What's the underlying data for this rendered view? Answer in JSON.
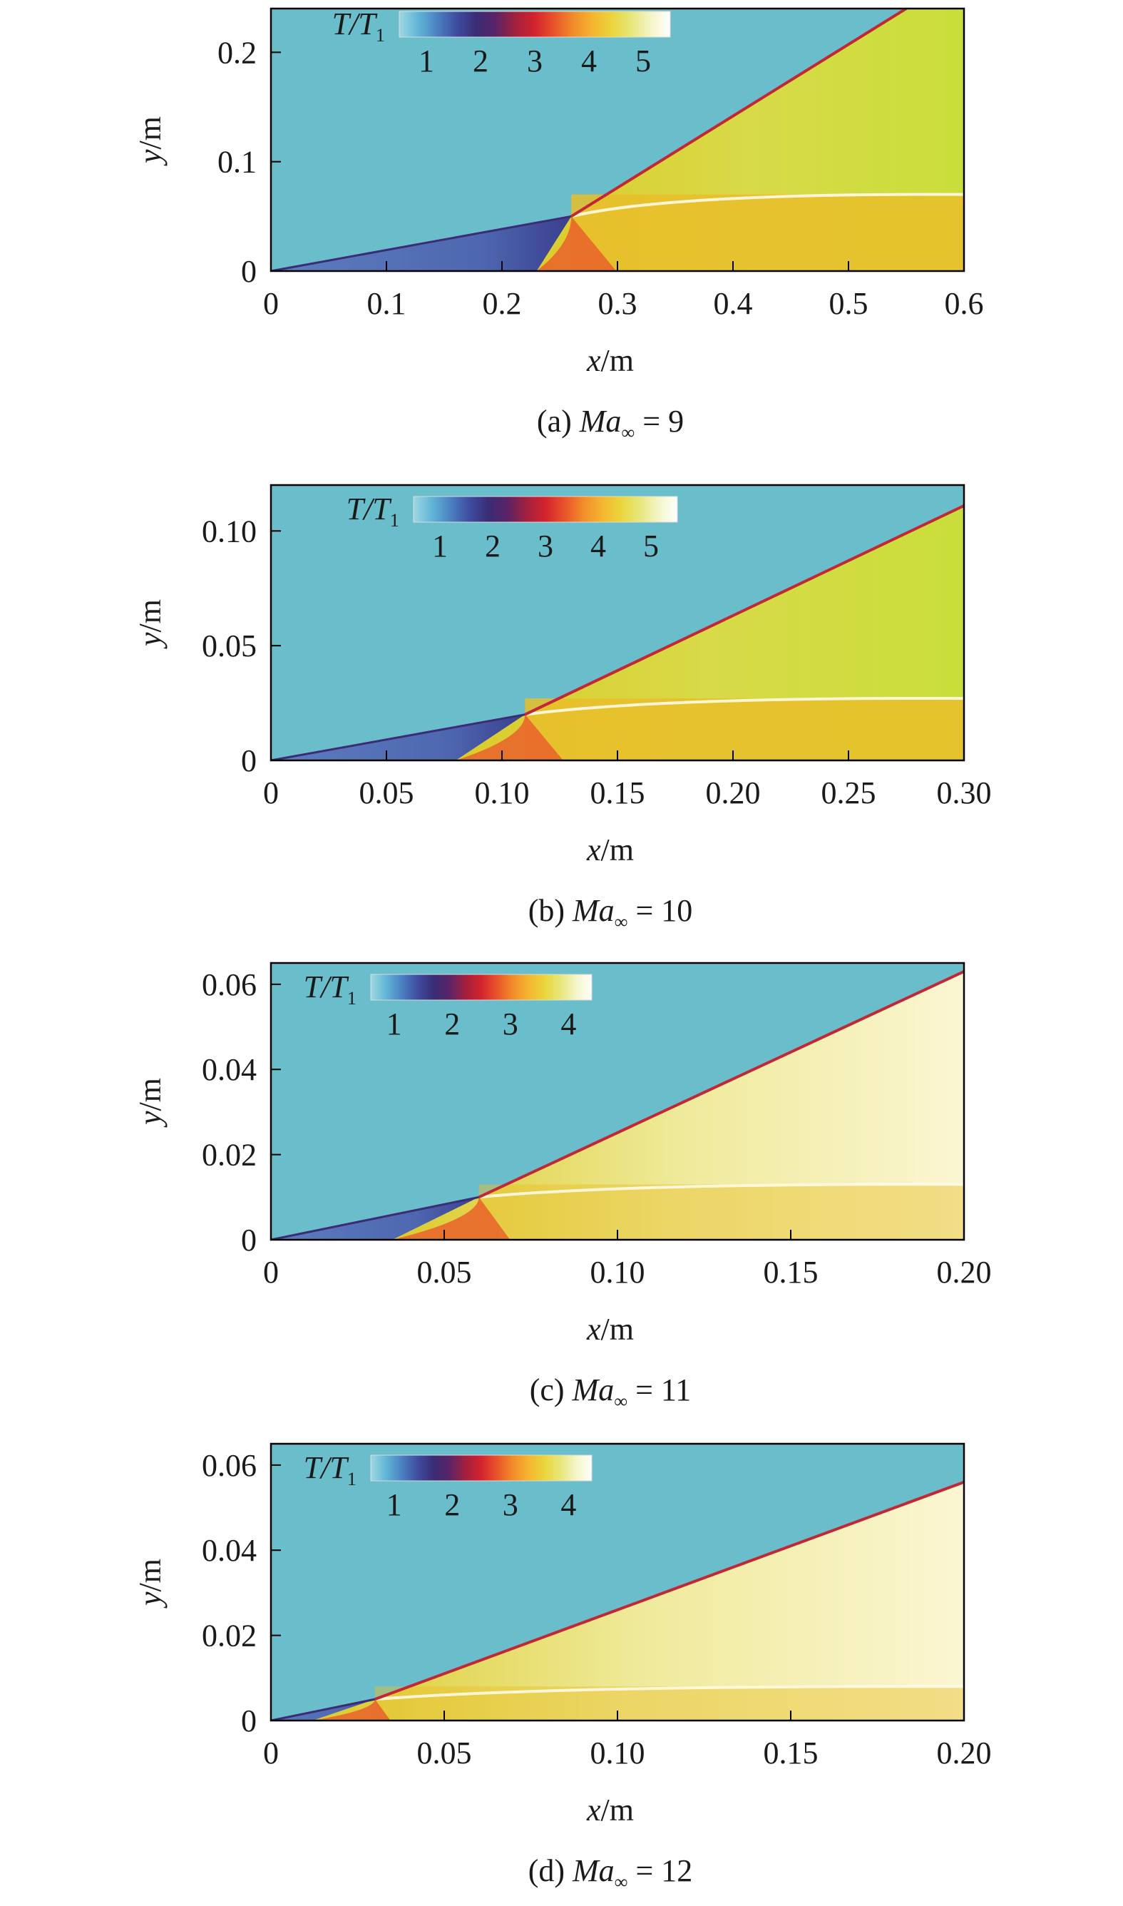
{
  "figure": {
    "colors": {
      "freestream": "#6ABECB",
      "ramp_layer": "#4E67B0",
      "shock_line": "#C0283A",
      "post_shock": "#DCCB2C",
      "boundary_layer": "#E9BE2A",
      "hot_core": "#FBF6D2",
      "axis": "#000000"
    },
    "colorbar_stops": [
      "#9ED8E3",
      "#5FB4D6",
      "#4A7FC0",
      "#3E4B9E",
      "#3A2C75",
      "#5B2466",
      "#A2203E",
      "#D3232E",
      "#E8542A",
      "#F28C2A",
      "#F5B530",
      "#EAD53C",
      "#E7E77A",
      "#F4F5C8",
      "#FFFFFF"
    ]
  },
  "chart_data": [
    {
      "type": "heatmap",
      "caption": "(a) Ma∞ = 9",
      "caption_prefix": "(a) ",
      "caption_var": "Ma",
      "caption_sub": "∞",
      "caption_suffix": " = 9",
      "xlabel": "x/m",
      "ylabel": "y/m",
      "colorbar_label": "T/T1",
      "colorbar_ticks": [
        "1",
        "2",
        "3",
        "4",
        "5"
      ],
      "colorbar_range": [
        0.5,
        5.5
      ],
      "xlim": [
        0,
        0.6
      ],
      "ylim": [
        0,
        0.24
      ],
      "xticks": [
        "0",
        "0.1",
        "0.2",
        "0.3",
        "0.4",
        "0.5",
        "0.6"
      ],
      "yticks": [
        "0",
        "0.1",
        "0.2"
      ],
      "xtick_values": [
        0,
        0.1,
        0.2,
        0.3,
        0.4,
        0.5,
        0.6
      ],
      "ytick_values": [
        0,
        0.1,
        0.2
      ],
      "ramp_end": [
        0.26,
        0.05
      ],
      "shock_end": [
        0.55,
        0.24
      ],
      "slip_line_y": 0.07,
      "shock_origin_x": 0.23
    },
    {
      "type": "heatmap",
      "caption": "(b) Ma∞ = 10",
      "caption_prefix": "(b) ",
      "caption_var": "Ma",
      "caption_sub": "∞",
      "caption_suffix": " = 10",
      "xlabel": "x/m",
      "ylabel": "y/m",
      "colorbar_label": "T/T1",
      "colorbar_ticks": [
        "1",
        "2",
        "3",
        "4",
        "5"
      ],
      "colorbar_range": [
        0.5,
        5.5
      ],
      "xlim": [
        0,
        0.3
      ],
      "ylim": [
        0,
        0.12
      ],
      "xticks": [
        "0",
        "0.05",
        "0.10",
        "0.15",
        "0.20",
        "0.25",
        "0.30"
      ],
      "yticks": [
        "0",
        "0.05",
        "0.10"
      ],
      "xtick_values": [
        0,
        0.05,
        0.1,
        0.15,
        0.2,
        0.25,
        0.3
      ],
      "ytick_values": [
        0,
        0.05,
        0.1
      ],
      "ramp_end": [
        0.11,
        0.02
      ],
      "shock_end": [
        0.3,
        0.111
      ],
      "slip_line_y": 0.027,
      "shock_origin_x": 0.08
    },
    {
      "type": "heatmap",
      "caption": "(c) Ma∞ = 11",
      "caption_prefix": "(c) ",
      "caption_var": "Ma",
      "caption_sub": "∞",
      "caption_suffix": " = 11",
      "xlabel": "x/m",
      "ylabel": "y/m",
      "colorbar_label": "T/T1",
      "colorbar_ticks": [
        "1",
        "2",
        "3",
        "4"
      ],
      "colorbar_range": [
        0.6,
        4.4
      ],
      "xlim": [
        0,
        0.2
      ],
      "ylim": [
        0,
        0.065
      ],
      "xticks": [
        "0",
        "0.05",
        "0.10",
        "0.15",
        "0.20"
      ],
      "yticks": [
        "0",
        "0.02",
        "0.04",
        "0.06"
      ],
      "xtick_values": [
        0,
        0.05,
        0.1,
        0.15,
        0.2
      ],
      "ytick_values": [
        0,
        0.02,
        0.04,
        0.06
      ],
      "ramp_end": [
        0.06,
        0.01
      ],
      "shock_end": [
        0.2,
        0.063
      ],
      "slip_line_y": 0.013,
      "shock_origin_x": 0.035
    },
    {
      "type": "heatmap",
      "caption": "(d) Ma∞ = 12",
      "caption_prefix": "(d) ",
      "caption_var": "Ma",
      "caption_sub": "∞",
      "caption_suffix": " = 12",
      "xlabel": "x/m",
      "ylabel": "y/m",
      "colorbar_label": "T/T1",
      "colorbar_ticks": [
        "1",
        "2",
        "3",
        "4"
      ],
      "colorbar_range": [
        0.6,
        4.4
      ],
      "xlim": [
        0,
        0.2
      ],
      "ylim": [
        0,
        0.065
      ],
      "xticks": [
        "0",
        "0.05",
        "0.10",
        "0.15",
        "0.20"
      ],
      "yticks": [
        "0",
        "0.02",
        "0.04",
        "0.06"
      ],
      "xtick_values": [
        0,
        0.05,
        0.1,
        0.15,
        0.2
      ],
      "ytick_values": [
        0,
        0.02,
        0.04,
        0.06
      ],
      "ramp_end": [
        0.03,
        0.005
      ],
      "shock_end": [
        0.2,
        0.056
      ],
      "slip_line_y": 0.008,
      "shock_origin_x": 0.012
    }
  ]
}
